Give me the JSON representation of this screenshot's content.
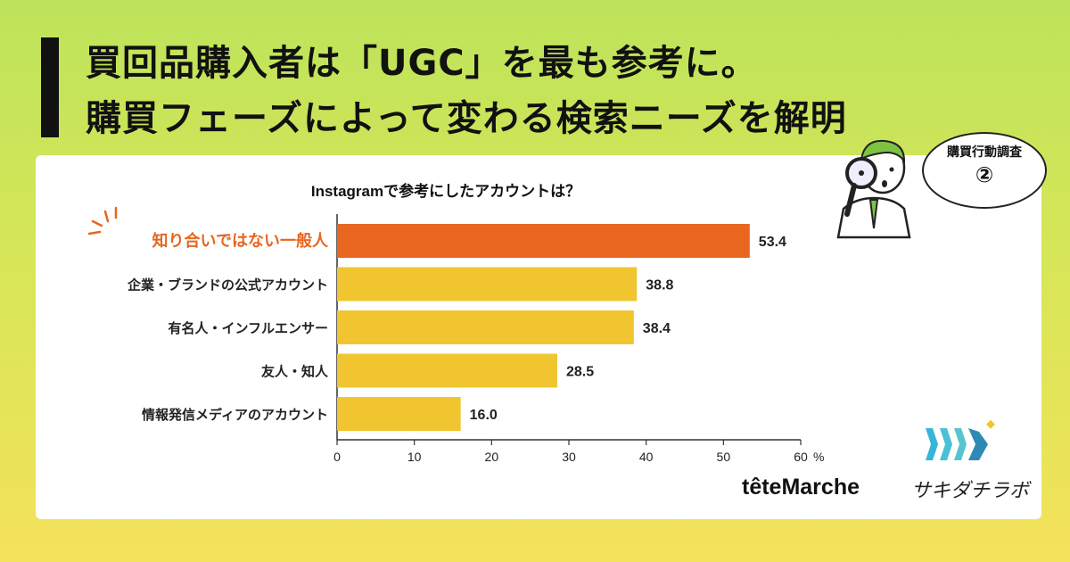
{
  "headline": {
    "line1": "買回品購入者は「UGC」を最も参考に。",
    "line2": "購買フェーズによって変わる検索ニーズを解明"
  },
  "badge": {
    "title": "購買行動調査",
    "number": "②"
  },
  "colors": {
    "highlight": "#e8661f",
    "bar": "#f0c530",
    "background_top": "#bde35a",
    "background_bottom": "#f4e25a"
  },
  "chart_data": {
    "type": "bar",
    "orientation": "horizontal",
    "title": "Instagramで参考にしたアカウントは？",
    "categories": [
      "知り合いではない一般人",
      "企業・ブランドの公式アカウント",
      "有名人・インフルエンサー",
      "友人・知人",
      "情報発信メディアのアカウント"
    ],
    "values": [
      53.4,
      38.8,
      38.4,
      28.5,
      16.0
    ],
    "value_labels": [
      "53.4",
      "38.8",
      "38.4",
      "28.5",
      "16.0"
    ],
    "highlight_index": 0,
    "xlim": [
      0,
      60
    ],
    "xticks": [
      "0",
      "10",
      "20",
      "30",
      "40",
      "50",
      "60"
    ],
    "xunit": "%",
    "grid": false
  },
  "logos": {
    "brand": "têteMarche",
    "lab": "サキダチラボ"
  }
}
